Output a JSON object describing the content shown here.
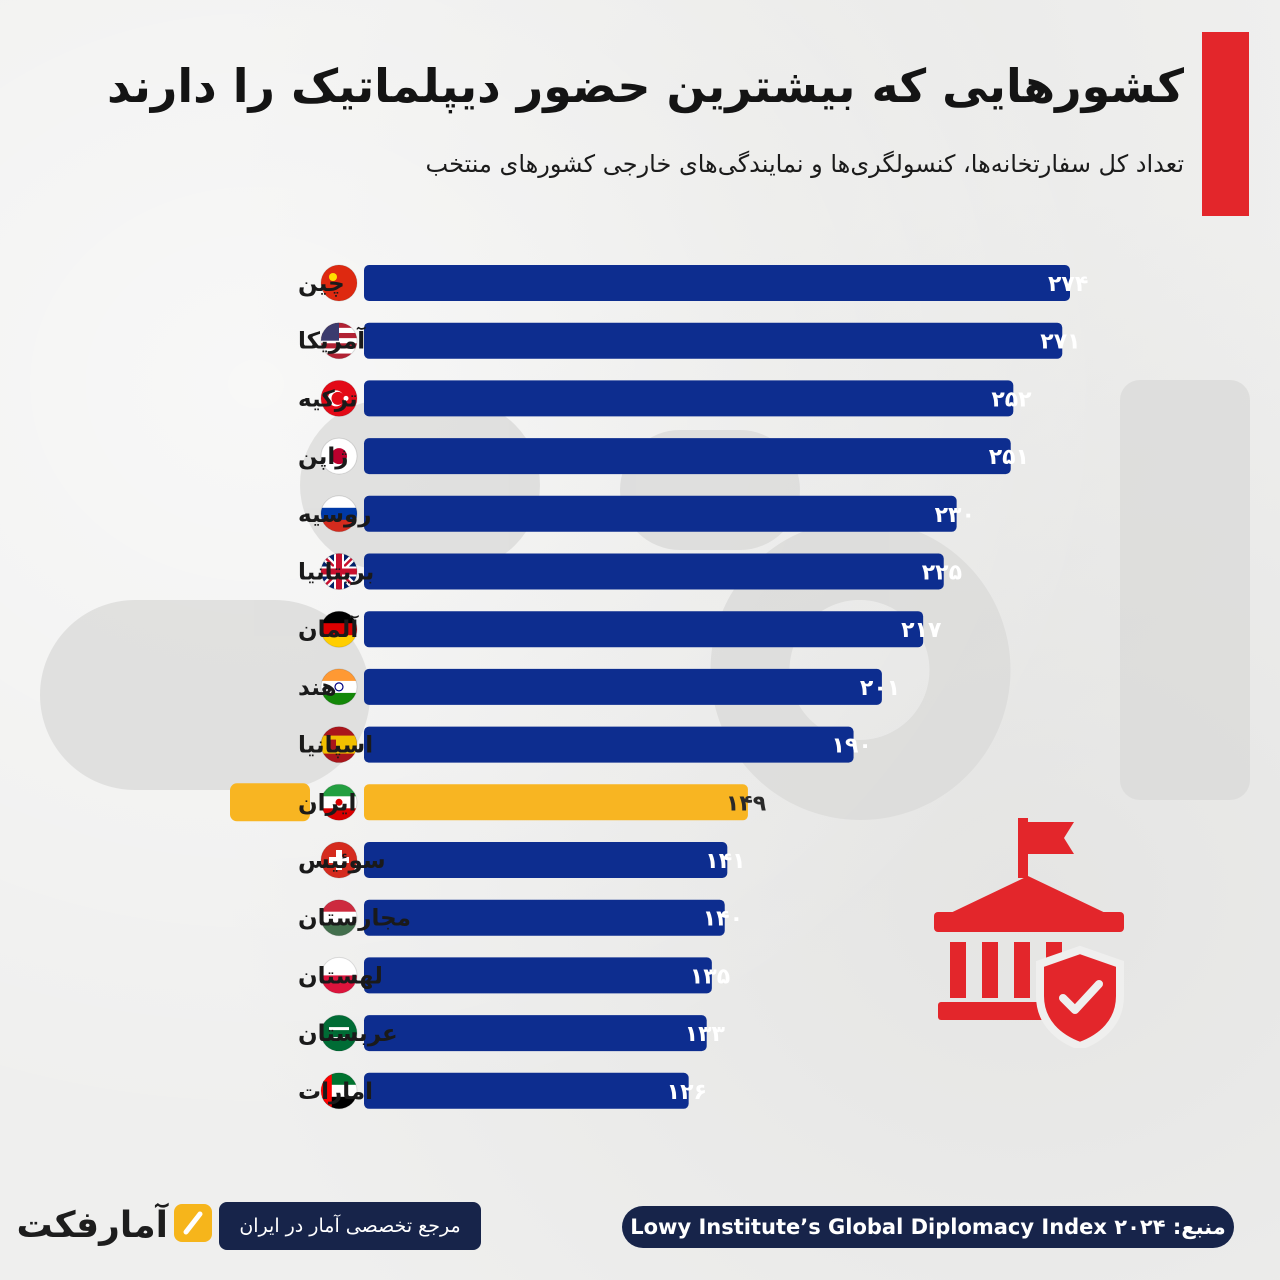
{
  "title": "کشورهایی که بیشترین حضور دیپلماتیک را دارند",
  "subtitle": "تعداد کل سفارتخانه‌ها، کنسولگری‌ها و نمایندگی‌های خارجی کشورهای منتخب",
  "colors": {
    "bar": "#0d2d8f",
    "highlight_bar": "#f8b522",
    "accent": "#e3262b",
    "footer_bg": "#17244a"
  },
  "chart_data": {
    "type": "bar",
    "orientation": "horizontal",
    "categories": [
      "چین",
      "آمریکا",
      "ترکیه",
      "ژاپن",
      "روسیه",
      "بریتانیا",
      "آلمان",
      "هند",
      "اسپانیا",
      "ایران",
      "سوئیس",
      "مجارستان",
      "لهستان",
      "عربستان",
      "امارات"
    ],
    "values": [
      274,
      271,
      252,
      251,
      230,
      225,
      217,
      201,
      190,
      149,
      141,
      140,
      135,
      133,
      126
    ],
    "value_labels": [
      "۲۷۴",
      "۲۷۱",
      "۲۵۲",
      "۲۵۱",
      "۲۳۰",
      "۲۲۵",
      "۲۱۷",
      "۲۰۱",
      "۱۹۰",
      "۱۴۹",
      "۱۴۱",
      "۱۴۰",
      "۱۳۵",
      "۱۳۳",
      "۱۲۶"
    ],
    "highlight": "ایران",
    "flags": [
      "china-flag",
      "usa-flag",
      "turkey-flag",
      "japan-flag",
      "russia-flag",
      "uk-flag",
      "germany-flag",
      "india-flag",
      "spain-flag",
      "iran-flag",
      "switzerland-flag",
      "hungary-flag",
      "poland-flag",
      "saudi-arabia-flag",
      "uae-flag"
    ],
    "title": "کشورهایی که بیشترین حضور دیپلماتیک را دارند",
    "xlabel": "",
    "ylabel": "",
    "xlim": [
      0,
      274
    ],
    "grid": false
  },
  "footer": {
    "source": "منبع: Lowy Institute’s Global Diplomacy Index ۲۰۲۴",
    "reference": "مرجع تخصصی آمار در ایران",
    "brand": "آمارفکت"
  }
}
